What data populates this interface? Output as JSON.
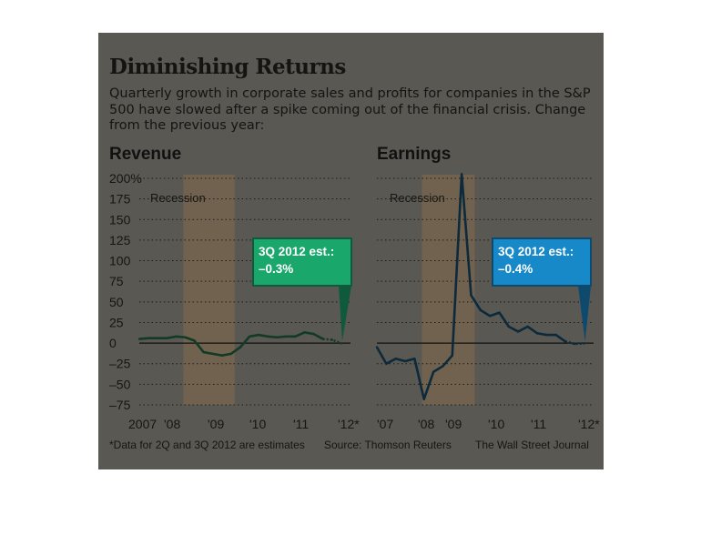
{
  "title": "Diminishing Returns",
  "subtitle": "Quarterly growth in corporate sales and profits for companies in the S&P 500 have slowed after a spike coming out of the financial crisis. Change from the previous year:",
  "footer": {
    "note": "*Data for 2Q and 3Q 2012 are estimates",
    "source": "Source: Thomson Reuters",
    "credit": "The Wall Street Journal"
  },
  "colors": {
    "background": "#5a5852",
    "recession": "#716250",
    "revenue_line": "#123a25",
    "earnings_line": "#0c2a3c",
    "revenue_callout": "#1aa76c",
    "earnings_callout": "#1889c8",
    "callout_border_revenue": "#0f5a3c",
    "callout_border_earnings": "#0d4a6e"
  },
  "chart_data": [
    {
      "type": "line",
      "title": "Revenue",
      "recession_label": "Recession",
      "recession": [
        2008.0,
        2009.5
      ],
      "ylim": [
        -75,
        200
      ],
      "yticks": [
        200,
        175,
        150,
        125,
        100,
        75,
        50,
        25,
        0,
        -25,
        -50,
        -75
      ],
      "ytick_labels": [
        "200%",
        "175",
        "150",
        "125",
        "100",
        "75",
        "50",
        "25",
        "0",
        "–25",
        "–50",
        "–75"
      ],
      "xlim": [
        2007.0,
        2012.75
      ],
      "xtick_labels": [
        "2007",
        "'08",
        "'09",
        "'10",
        "'11",
        "'12*"
      ],
      "annotation": {
        "line1": "3Q 2012 est.:",
        "line2": "–0.3%"
      },
      "x": [
        2007.0,
        2007.25,
        2007.5,
        2007.75,
        2008.0,
        2008.25,
        2008.5,
        2008.75,
        2009.0,
        2009.25,
        2009.5,
        2009.75,
        2010.0,
        2010.25,
        2010.5,
        2010.75,
        2011.0,
        2011.25,
        2011.5,
        2011.75,
        2012.0,
        2012.25,
        2012.5
      ],
      "values": [
        5,
        6,
        6,
        6,
        8,
        7,
        3,
        -11,
        -13,
        -15,
        -13,
        -5,
        8,
        10,
        8,
        7,
        8,
        8,
        13,
        11,
        5,
        4,
        -0.3
      ],
      "estimate_from_index": 20
    },
    {
      "type": "line",
      "title": "Earnings",
      "recession_label": "Recession",
      "recession": [
        2008.0,
        2009.5
      ],
      "ylim": [
        -75,
        200
      ],
      "yticks": [
        200,
        175,
        150,
        125,
        100,
        75,
        50,
        25,
        0,
        -25,
        -50,
        -75
      ],
      "xlim": [
        2007.0,
        2012.75
      ],
      "xtick_labels": [
        "'07",
        "'08",
        "'09",
        "'10",
        "'11",
        "'12*"
      ],
      "annotation": {
        "line1": "3Q 2012 est.:",
        "line2": "–0.4%"
      },
      "x": [
        2007.0,
        2007.25,
        2007.5,
        2007.75,
        2008.0,
        2008.25,
        2008.5,
        2008.75,
        2009.0,
        2009.25,
        2009.5,
        2009.75,
        2010.0,
        2010.25,
        2010.5,
        2010.75,
        2011.0,
        2011.25,
        2011.5,
        2011.75,
        2012.0,
        2012.25,
        2012.5
      ],
      "values": [
        -5,
        -25,
        -19,
        -22,
        -19,
        -68,
        -35,
        -28,
        -15,
        205,
        58,
        40,
        33,
        37,
        20,
        14,
        20,
        12,
        10,
        10,
        2,
        -1,
        -0.4
      ],
      "estimate_from_index": 20
    }
  ]
}
